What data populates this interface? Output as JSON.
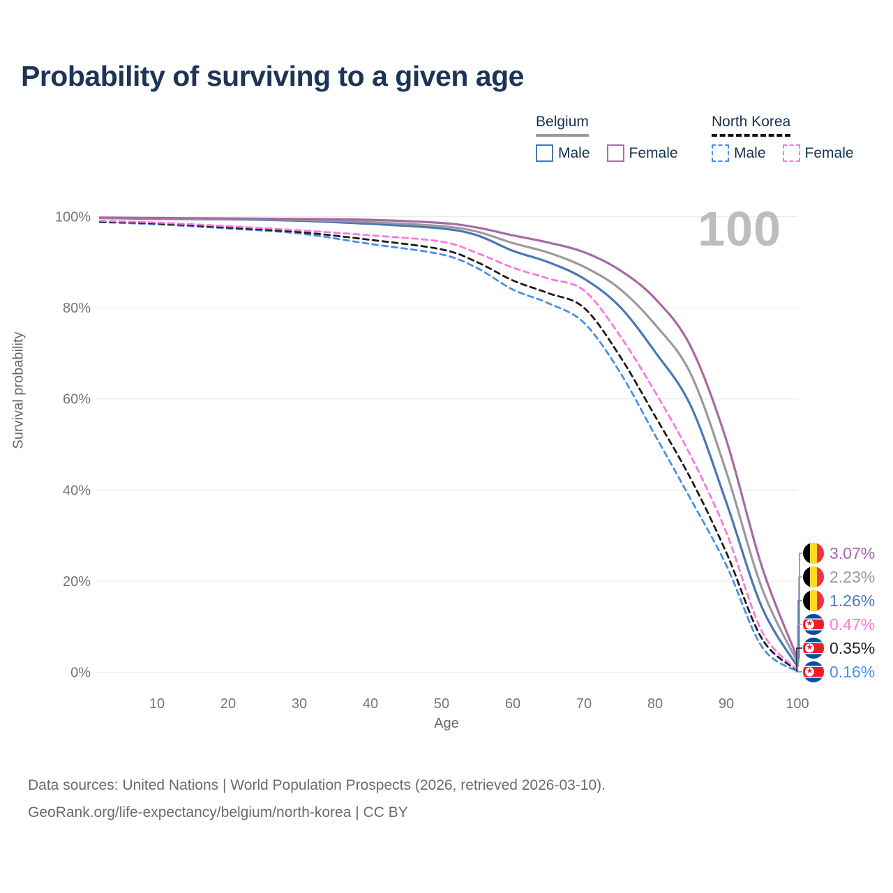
{
  "title": "Probability of surviving to a given age",
  "watermark": "100",
  "footer": {
    "line1": "Data sources: United Nations | World Population Prospects (2026, retrieved 2026-03-10).",
    "line2": "GeoRank.org/life-expectancy/belgium/north-korea | CC BY"
  },
  "legend": {
    "groups": [
      {
        "country": "Belgium",
        "line_style": "solid",
        "underline_color": "#999999",
        "items": [
          {
            "label": "Male",
            "color": "#4a77b4",
            "dashed": false
          },
          {
            "label": "Female",
            "color": "#b468b0",
            "dashed": false
          }
        ]
      },
      {
        "country": "North Korea",
        "line_style": "dashed",
        "underline_color": "#111111",
        "items": [
          {
            "label": "Male",
            "color": "#4a90e6",
            "dashed": true
          },
          {
            "label": "Female",
            "color": "#fc77e2",
            "dashed": true
          }
        ]
      }
    ]
  },
  "chart_data": {
    "type": "line",
    "title": "Probability of surviving to a given age",
    "xlabel": "Age",
    "ylabel": "Survival probability",
    "xlim": [
      0,
      100
    ],
    "ylim": [
      0,
      100
    ],
    "grid": "horizontal",
    "x_ticks": [
      10,
      20,
      30,
      40,
      50,
      60,
      70,
      80,
      90,
      100
    ],
    "y_ticks": [
      0,
      20,
      40,
      60,
      80,
      100
    ],
    "y_tick_labels": [
      "0%",
      "20%",
      "40%",
      "60%",
      "80%",
      "100%"
    ],
    "x": [
      2,
      10,
      20,
      30,
      40,
      50,
      55,
      60,
      65,
      70,
      75,
      80,
      85,
      90,
      95,
      100
    ],
    "series": [
      {
        "name": "North Korea Male",
        "country": "North Korea",
        "flag": "north-korea",
        "color": "#4a90e6",
        "dashed": true,
        "end_label": "0.16%",
        "end_label_color": "#4a90e6",
        "values": [
          98.8,
          98.3,
          97.4,
          96.3,
          94.0,
          91.7,
          88.7,
          84.0,
          81.0,
          76.7,
          66.0,
          52.0,
          38.0,
          23.5,
          5.6,
          0.16
        ]
      },
      {
        "name": "North Korea",
        "country": "North Korea",
        "flag": "north-korea",
        "color": "#1c1c1c",
        "dashed": true,
        "end_label": "0.35%",
        "end_label_color": "#222222",
        "values": [
          98.9,
          98.5,
          97.6,
          96.6,
          94.9,
          92.8,
          90.0,
          86.0,
          83.2,
          80.0,
          69.5,
          56.2,
          42.5,
          26.3,
          7.4,
          0.35
        ]
      },
      {
        "name": "North Korea Female",
        "country": "North Korea",
        "flag": "north-korea",
        "color": "#fc77e2",
        "dashed": true,
        "end_label": "0.47%",
        "end_label_color": "#fc77e2",
        "values": [
          99.1,
          98.7,
          97.9,
          97.0,
          95.9,
          94.5,
          92.0,
          88.8,
          86.4,
          83.8,
          74.0,
          61.5,
          47.5,
          30.7,
          9.0,
          0.47
        ]
      },
      {
        "name": "Belgium Male",
        "country": "Belgium",
        "flag": "belgium",
        "color": "#4a77b4",
        "dashed": false,
        "end_label": "1.26%",
        "end_label_color": "#4a7ab5",
        "values": [
          99.7,
          99.5,
          99.4,
          99.1,
          98.4,
          97.4,
          95.9,
          92.5,
          90.0,
          86.4,
          80.3,
          70.3,
          58.5,
          37.3,
          14.3,
          1.26
        ]
      },
      {
        "name": "Belgium",
        "country": "Belgium",
        "flag": "belgium",
        "color": "#9a9a9a",
        "dashed": false,
        "end_label": "2.23%",
        "end_label_color": "#999999",
        "values": [
          99.7,
          99.6,
          99.5,
          99.3,
          98.8,
          97.9,
          96.7,
          94.2,
          92.1,
          89.0,
          84.2,
          76.3,
          65.5,
          44.0,
          18.5,
          2.23
        ]
      },
      {
        "name": "Belgium Female",
        "country": "Belgium",
        "flag": "belgium",
        "color": "#a868a8",
        "dashed": false,
        "end_label": "3.07%",
        "end_label_color": "#a865a8",
        "values": [
          99.8,
          99.7,
          99.6,
          99.5,
          99.3,
          98.6,
          97.6,
          95.9,
          94.3,
          92.2,
          88.3,
          82.0,
          71.5,
          51.0,
          23.2,
          3.07
        ]
      }
    ],
    "end_label_order": [
      "Belgium Female",
      "Belgium",
      "Belgium Male",
      "North Korea Female",
      "North Korea",
      "North Korea Male"
    ]
  }
}
